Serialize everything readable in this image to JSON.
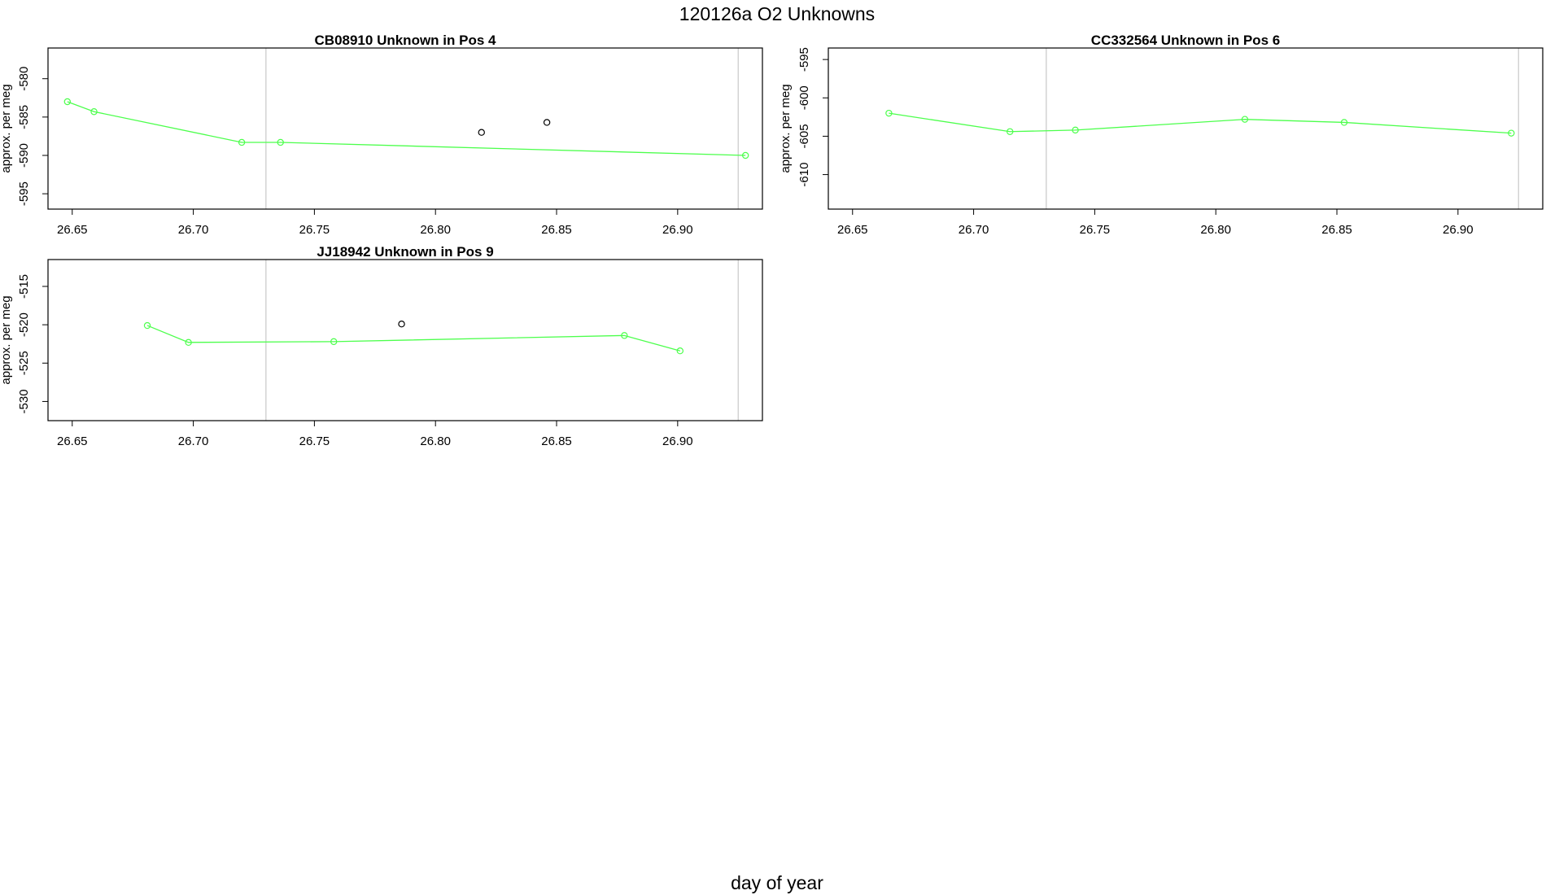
{
  "figure": {
    "title": "120126a  O2 Unknowns",
    "xlabel": "day of year"
  },
  "colors": {
    "series": "#4cff4c",
    "outlier": "#000000",
    "reference_line": "#c8c8c8",
    "frame": "#000000"
  },
  "chart_data": [
    {
      "type": "line",
      "title": "CB08910    Unknown in Pos 4",
      "ylabel": "approx. per meg",
      "xlim": [
        26.64,
        26.935
      ],
      "ylim": [
        -597,
        -576
      ],
      "x_ticks": [
        26.65,
        26.7,
        26.75,
        26.8,
        26.85,
        26.9
      ],
      "x_tick_labels": [
        "26.65",
        "26.70",
        "26.75",
        "26.80",
        "26.85",
        "26.90"
      ],
      "y_ticks": [
        -580,
        -585,
        -590,
        -595
      ],
      "y_tick_labels": [
        "-580",
        "-585",
        "-590",
        "-595"
      ],
      "reference_x": [
        26.73,
        26.925
      ],
      "series": [
        {
          "x": [
            26.648,
            26.659,
            26.72,
            26.736,
            26.928
          ],
          "y": [
            -583.0,
            -584.3,
            -588.3,
            -588.3,
            -590.0
          ]
        }
      ],
      "outliers": {
        "x": [
          26.819,
          26.846
        ],
        "y": [
          -587.0,
          -585.7
        ]
      }
    },
    {
      "type": "line",
      "title": "CC332564    Unknown in Pos 6",
      "ylabel": "approx. per meg",
      "xlim": [
        26.64,
        26.935
      ],
      "ylim": [
        -614.5,
        -593.5
      ],
      "x_ticks": [
        26.65,
        26.7,
        26.75,
        26.8,
        26.85,
        26.9
      ],
      "x_tick_labels": [
        "26.65",
        "26.70",
        "26.75",
        "26.80",
        "26.85",
        "26.90"
      ],
      "y_ticks": [
        -595,
        -600,
        -605,
        -610
      ],
      "y_tick_labels": [
        "-595",
        "-600",
        "-605",
        "-610"
      ],
      "reference_x": [
        26.73,
        26.925
      ],
      "series": [
        {
          "x": [
            26.665,
            26.715,
            26.742,
            26.812,
            26.853,
            26.922
          ],
          "y": [
            -602.0,
            -604.4,
            -604.2,
            -602.8,
            -603.2,
            -604.6
          ]
        }
      ],
      "outliers": {
        "x": [],
        "y": []
      }
    },
    {
      "type": "line",
      "title": "JJ18942    Unknown in Pos 9",
      "ylabel": "approx. per meg",
      "xlim": [
        26.64,
        26.935
      ],
      "ylim": [
        -532.5,
        -511.5
      ],
      "x_ticks": [
        26.65,
        26.7,
        26.75,
        26.8,
        26.85,
        26.9
      ],
      "x_tick_labels": [
        "26.65",
        "26.70",
        "26.75",
        "26.80",
        "26.85",
        "26.90"
      ],
      "y_ticks": [
        -515,
        -520,
        -525,
        -530
      ],
      "y_tick_labels": [
        "-515",
        "-520",
        "-525",
        "-530"
      ],
      "reference_x": [
        26.73,
        26.925
      ],
      "series": [
        {
          "x": [
            26.681,
            26.698,
            26.758,
            26.878,
            26.901
          ],
          "y": [
            -520.1,
            -522.3,
            -522.2,
            -521.4,
            -523.4
          ]
        }
      ],
      "outliers": {
        "x": [
          26.786
        ],
        "y": [
          -519.9
        ]
      }
    }
  ]
}
